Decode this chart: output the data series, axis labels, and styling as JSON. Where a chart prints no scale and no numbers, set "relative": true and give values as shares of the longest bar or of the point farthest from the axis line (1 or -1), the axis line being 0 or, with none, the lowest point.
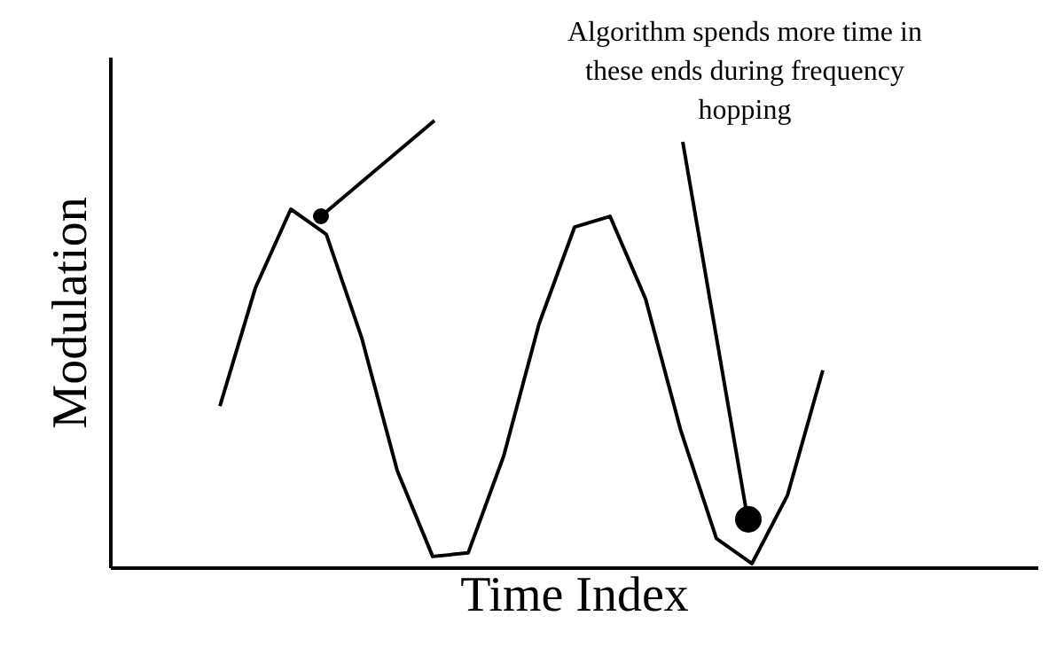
{
  "chart_data": {
    "type": "line",
    "relative": true,
    "xlabel": "Time Index",
    "ylabel": "Modulation",
    "tick_labels": false,
    "legend": false,
    "grid": false,
    "marker": "none",
    "line_style": "solid",
    "annotations": [
      "Algorithm spends more time in these ends during frequency hopping"
    ],
    "categories": [
      null,
      null,
      null,
      null,
      null,
      null,
      null,
      null,
      null,
      null,
      null,
      null,
      null,
      null,
      null,
      null,
      null,
      null
    ],
    "series": [
      {
        "color": "#000000",
        "values": [
          0.45,
          0.78,
          1,
          0.93,
          0.64,
          0.27,
          0.03,
          0.04,
          0.31,
          0.68,
          0.95,
          0.98,
          0.75,
          0.38,
          0.08,
          0.01,
          0.2,
          0.55
        ]
      }
    ]
  }
}
